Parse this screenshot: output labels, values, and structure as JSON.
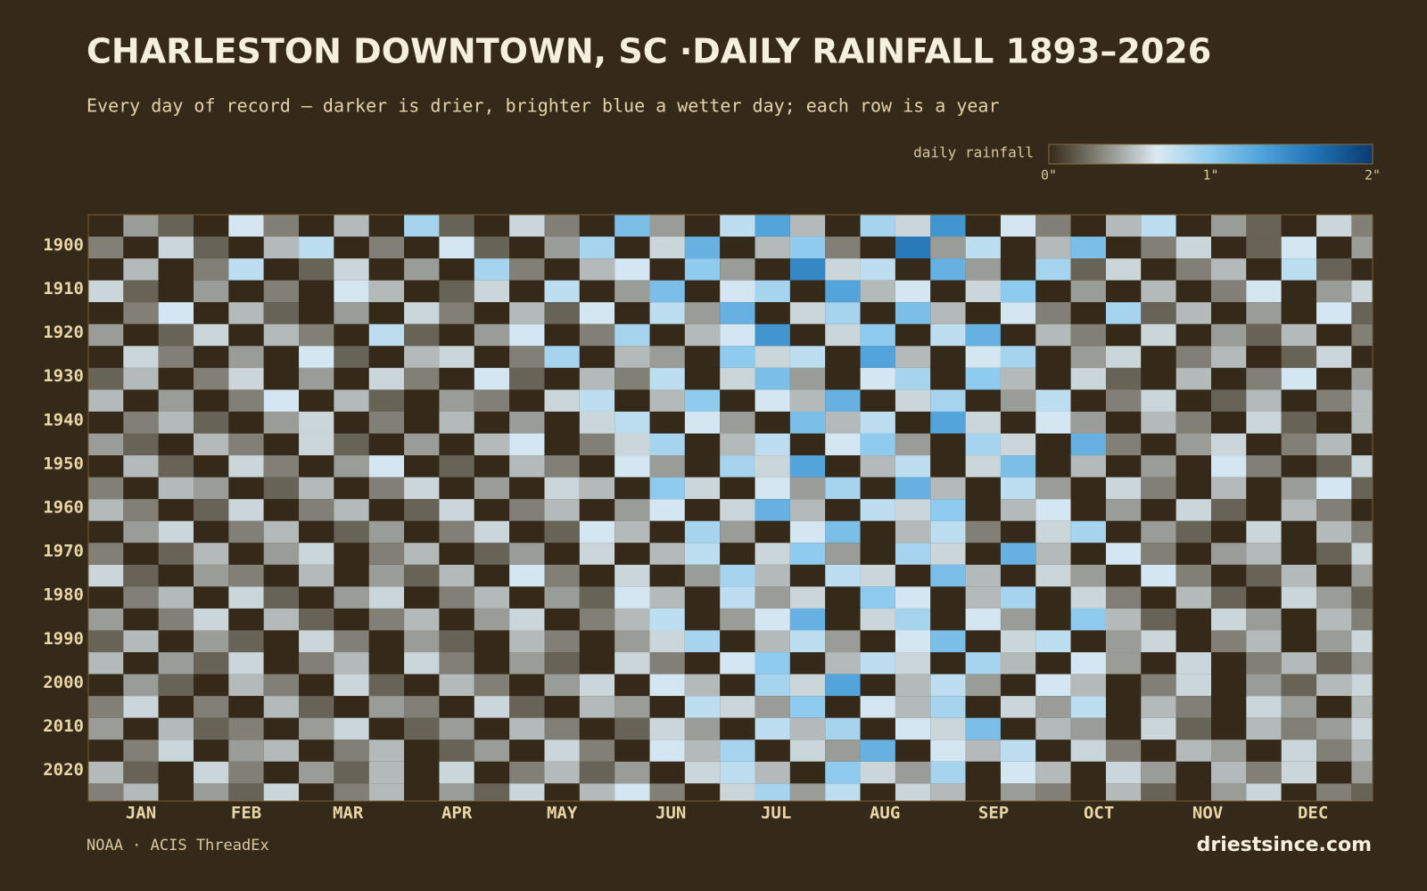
{
  "chart_data": {
    "type": "heatmap",
    "title": "CHARLESTON DOWNTOWN, SC ·DAILY RAINFALL 1893–2026",
    "subtitle": "Every day of record — darker is drier, brighter blue a wetter day; each row is a year",
    "source": "NOAA · ACIS ThreadEx",
    "brand": "driestsince.com",
    "colorbar": {
      "label": "daily rainfall",
      "lim": [
        0,
        2
      ],
      "ticks": [
        {
          "value": 0,
          "label": "0\""
        },
        {
          "value": 1,
          "label": "1\""
        },
        {
          "value": 2,
          "label": "2\""
        }
      ],
      "colors": [
        "#35291a",
        "#8a8a80",
        "#dbe9f2",
        "#8fcbee",
        "#4ba0d8",
        "#1f6fb0",
        "#0b3a70"
      ]
    },
    "xlim": [
      1,
      367
    ],
    "xticks": [
      {
        "value": 16,
        "label": "JAN"
      },
      {
        "value": 46,
        "label": "FEB"
      },
      {
        "value": 75,
        "label": "MAR"
      },
      {
        "value": 106,
        "label": "APR"
      },
      {
        "value": 136,
        "label": "MAY"
      },
      {
        "value": 167,
        "label": "JUN"
      },
      {
        "value": 197,
        "label": "JUL"
      },
      {
        "value": 228,
        "label": "AUG"
      },
      {
        "value": 259,
        "label": "SEP"
      },
      {
        "value": 289,
        "label": "OCT"
      },
      {
        "value": 320,
        "label": "NOV"
      },
      {
        "value": 350,
        "label": "DEC"
      }
    ],
    "ylim": [
      1893,
      2027
    ],
    "yticks": [
      1900,
      1910,
      1920,
      1930,
      1940,
      1950,
      1960,
      1970,
      1980,
      1990,
      2000,
      2010,
      2020
    ],
    "x": [
      1,
      11,
      21,
      31,
      41,
      51,
      61,
      71,
      81,
      91,
      101,
      111,
      121,
      131,
      141,
      151,
      161,
      171,
      181,
      191,
      201,
      211,
      221,
      231,
      241,
      251,
      261,
      271,
      281,
      291,
      301,
      311,
      321,
      331,
      341,
      351,
      361
    ],
    "y": [
      1893,
      1898,
      1903,
      1908,
      1913,
      1918,
      1923,
      1928,
      1933,
      1938,
      1943,
      1948,
      1953,
      1958,
      1963,
      1968,
      1973,
      1978,
      1983,
      1988,
      1993,
      1998,
      2003,
      2008,
      2013,
      2018,
      2023
    ],
    "values": [
      [
        0,
        0.4,
        0.2,
        0,
        0.7,
        0.3,
        0,
        0.5,
        0,
        0.9,
        0.2,
        0,
        0.6,
        0.3,
        0,
        1.1,
        0.4,
        0,
        0.8,
        1.3,
        0.5,
        0,
        0.9,
        0.6,
        1.4,
        0,
        0.7,
        0.3,
        0,
        0.5,
        0.8,
        0,
        0.4,
        0.2,
        0,
        0.6,
        0.3
      ],
      [
        0.3,
        0,
        0.6,
        0.2,
        0,
        0.5,
        0.8,
        0,
        0.3,
        0,
        0.7,
        0.2,
        0,
        0.4,
        0.9,
        0,
        0.6,
        1.2,
        0,
        0.5,
        1.0,
        0.3,
        0,
        1.6,
        0.4,
        0.8,
        0,
        0.5,
        1.1,
        0,
        0.3,
        0.6,
        0,
        0.2,
        0.7,
        0,
        0.4
      ],
      [
        0,
        0.5,
        0,
        0.3,
        0.8,
        0,
        0.2,
        0.6,
        0,
        0.4,
        0,
        0.9,
        0.3,
        0,
        0.5,
        0.7,
        0,
        1.0,
        0.4,
        0,
        1.5,
        0.6,
        0.8,
        0,
        1.2,
        0.4,
        0,
        0.9,
        0.2,
        0.6,
        0,
        0.3,
        0.5,
        0,
        0.8,
        0.2,
        0
      ],
      [
        0.6,
        0.2,
        0,
        0.4,
        0,
        0.3,
        0,
        0.7,
        0.5,
        0,
        0.2,
        0.6,
        0,
        0.8,
        0,
        0.4,
        1.1,
        0,
        0.7,
        0.9,
        0,
        1.3,
        0.5,
        0.7,
        0,
        0.6,
        1.0,
        0,
        0.4,
        0,
        0.5,
        0,
        0.3,
        0.7,
        0,
        0.4,
        0.6
      ],
      [
        0,
        0.3,
        0.7,
        0,
        0.5,
        0.2,
        0,
        0.4,
        0,
        0.6,
        0.3,
        0,
        0.5,
        0.2,
        0.7,
        0,
        0.8,
        0.4,
        1.2,
        0,
        0.6,
        0.9,
        0,
        1.1,
        0.5,
        0,
        0.7,
        0.3,
        0,
        0.9,
        0.2,
        0.5,
        0,
        0.4,
        0,
        0.7,
        0.2
      ],
      [
        0.4,
        0,
        0.2,
        0.6,
        0,
        0.5,
        0.3,
        0,
        0.8,
        0.2,
        0,
        0.4,
        0.7,
        0,
        0.3,
        0.9,
        0,
        0.5,
        0.7,
        1.4,
        0,
        0.6,
        1.0,
        0,
        0.8,
        1.2,
        0,
        0.5,
        0.3,
        0,
        0.6,
        0,
        0.4,
        0.2,
        0.5,
        0,
        0.3
      ],
      [
        0,
        0.6,
        0.3,
        0,
        0.4,
        0,
        0.7,
        0.2,
        0,
        0.5,
        0.6,
        0,
        0.3,
        0.9,
        0,
        0.5,
        0.4,
        0,
        1.0,
        0.6,
        0.8,
        0,
        1.3,
        0.5,
        0,
        0.7,
        0.9,
        0,
        0.4,
        0.6,
        0,
        0.3,
        0.5,
        0,
        0.2,
        0.6,
        0
      ],
      [
        0.2,
        0.5,
        0,
        0.3,
        0.6,
        0,
        0.4,
        0,
        0.6,
        0.3,
        0,
        0.7,
        0.2,
        0,
        0.5,
        0.3,
        0.8,
        0,
        0.6,
        1.1,
        0.4,
        0,
        0.7,
        0.9,
        0,
        1.0,
        0.5,
        0,
        0.6,
        0.2,
        0,
        0.5,
        0,
        0.3,
        0.7,
        0,
        0.4
      ],
      [
        0.5,
        0,
        0.4,
        0,
        0.3,
        0.7,
        0,
        0.5,
        0.2,
        0,
        0.4,
        0.3,
        0,
        0.6,
        0.8,
        0,
        0.5,
        1.0,
        0,
        0.7,
        0.5,
        1.2,
        0,
        0.6,
        0.9,
        0,
        0.4,
        0.8,
        0,
        0.3,
        0.6,
        0,
        0.2,
        0.5,
        0,
        0.3,
        0.5
      ],
      [
        0,
        0.3,
        0.5,
        0.2,
        0,
        0.4,
        0.6,
        0,
        0.3,
        0,
        0.5,
        0,
        0.4,
        0,
        0.6,
        0.8,
        0,
        0.7,
        0.4,
        0,
        1.1,
        0.5,
        0.8,
        0,
        1.3,
        0.6,
        0,
        0.7,
        0.4,
        0,
        0.5,
        0.3,
        0,
        0.6,
        0.2,
        0,
        0.5
      ],
      [
        0.4,
        0.2,
        0,
        0.5,
        0.3,
        0,
        0.6,
        0.2,
        0,
        0.4,
        0,
        0.5,
        0.7,
        0,
        0.3,
        0.6,
        0.9,
        0,
        0.5,
        0.8,
        0,
        0.7,
        1.0,
        0.4,
        0,
        0.9,
        0.6,
        0,
        1.2,
        0.3,
        0,
        0.4,
        0.6,
        0,
        0.3,
        0.5,
        0
      ],
      [
        0,
        0.5,
        0.2,
        0,
        0.6,
        0.3,
        0,
        0.4,
        0.7,
        0,
        0.2,
        0,
        0.5,
        0.3,
        0,
        0.7,
        0.4,
        0,
        0.9,
        0.6,
        1.3,
        0,
        0.5,
        0.8,
        0,
        0.6,
        1.1,
        0,
        0.5,
        0,
        0.4,
        0,
        0.7,
        0.3,
        0,
        0.2,
        0.6
      ],
      [
        0.3,
        0,
        0.5,
        0.4,
        0,
        0.2,
        0.5,
        0,
        0.3,
        0.6,
        0,
        0.4,
        0,
        0.6,
        0.5,
        0,
        1.0,
        0.6,
        0,
        0.7,
        0.4,
        0.9,
        0,
        1.2,
        0.5,
        0,
        0.8,
        0.4,
        0,
        0.6,
        0.3,
        0,
        0.5,
        0,
        0.4,
        0.7,
        0.2
      ],
      [
        0.5,
        0.3,
        0,
        0.2,
        0.6,
        0,
        0.3,
        0.5,
        0,
        0.2,
        0.6,
        0,
        0.3,
        0.5,
        0,
        0.4,
        0.7,
        0,
        0.6,
        1.2,
        0.5,
        0,
        0.8,
        0.6,
        1.0,
        0,
        0.5,
        0.7,
        0,
        0.4,
        0,
        0.6,
        0.2,
        0,
        0.5,
        0.3,
        0
      ],
      [
        0,
        0.4,
        0.6,
        0,
        0.3,
        0.5,
        0,
        0.2,
        0.4,
        0,
        0.3,
        0.6,
        0,
        0.2,
        0.7,
        0.5,
        0,
        0.9,
        0.4,
        0,
        0.7,
        1.1,
        0,
        0.5,
        0.8,
        0.3,
        0,
        0.6,
        0.9,
        0,
        0.4,
        0.2,
        0,
        0.6,
        0,
        0.5,
        0.3
      ],
      [
        0.3,
        0,
        0.2,
        0.5,
        0,
        0.4,
        0.6,
        0,
        0.3,
        0.5,
        0,
        0.2,
        0.4,
        0,
        0.6,
        0,
        0.5,
        0.8,
        0,
        0.6,
        1.0,
        0.4,
        0,
        0.9,
        0.6,
        0,
        1.2,
        0.5,
        0,
        0.7,
        0.3,
        0,
        0.4,
        0.5,
        0,
        0.2,
        0.6
      ],
      [
        0.6,
        0.2,
        0,
        0.4,
        0.3,
        0,
        0.5,
        0,
        0.4,
        0.2,
        0.5,
        0,
        0.7,
        0.3,
        0,
        0.6,
        0,
        0.4,
        0.9,
        0.5,
        0,
        0.8,
        0.6,
        0,
        1.1,
        0.5,
        0,
        0.6,
        0.4,
        0,
        0.7,
        0.3,
        0,
        0.2,
        0.5,
        0,
        0.4
      ],
      [
        0,
        0.3,
        0.5,
        0,
        0.6,
        0.2,
        0,
        0.4,
        0.6,
        0,
        0.3,
        0.5,
        0,
        0.4,
        0.2,
        0.7,
        0.5,
        0,
        0.8,
        0.4,
        0.6,
        0,
        1.0,
        0.7,
        0,
        0.5,
        0.9,
        0,
        0.6,
        0.3,
        0,
        0.5,
        0.2,
        0,
        0.6,
        0.4,
        0.2
      ],
      [
        0.4,
        0,
        0.3,
        0.6,
        0,
        0.5,
        0.2,
        0,
        0.3,
        0.5,
        0,
        0.4,
        0.6,
        0,
        0.3,
        0.5,
        0.8,
        0,
        0.4,
        0.7,
        1.2,
        0,
        0.6,
        0.9,
        0,
        0.7,
        0.4,
        0,
        1.0,
        0.5,
        0.2,
        0,
        0.6,
        0.4,
        0,
        0.5,
        0.3
      ],
      [
        0.2,
        0.5,
        0,
        0.4,
        0.2,
        0,
        0.6,
        0.3,
        0,
        0.4,
        0.2,
        0,
        0.5,
        0.3,
        0,
        0.4,
        0.6,
        0.9,
        0,
        0.5,
        0.8,
        0.4,
        0,
        0.7,
        1.1,
        0,
        0.6,
        0.8,
        0,
        0.4,
        0.6,
        0,
        0.3,
        0.5,
        0,
        0.4,
        0.6
      ],
      [
        0.5,
        0,
        0.4,
        0.2,
        0.6,
        0,
        0.3,
        0.5,
        0,
        0.6,
        0.3,
        0,
        0.4,
        0.2,
        0,
        0.6,
        0.3,
        0,
        0.7,
        1.0,
        0,
        0.5,
        0.8,
        0.6,
        0,
        0.9,
        0.5,
        0,
        0.7,
        0.4,
        0,
        0.6,
        0,
        0.3,
        0.5,
        0.2,
        0.4
      ],
      [
        0,
        0.4,
        0.2,
        0,
        0.5,
        0.3,
        0,
        0.6,
        0.2,
        0,
        0.5,
        0.3,
        0,
        0.4,
        0.6,
        0,
        0.7,
        0.5,
        0,
        0.9,
        0.6,
        1.3,
        0,
        0.5,
        0.8,
        0.4,
        0,
        0.7,
        0.5,
        0,
        0.3,
        0.6,
        0,
        0.4,
        0.2,
        0.5,
        0.6
      ],
      [
        0.3,
        0.6,
        0,
        0.3,
        0,
        0.5,
        0.2,
        0,
        0.4,
        0.3,
        0,
        0.6,
        0.2,
        0,
        0.5,
        0.4,
        0,
        0.8,
        0.6,
        0.4,
        1.0,
        0,
        0.7,
        0.5,
        0.9,
        0,
        0.6,
        0.4,
        0.8,
        0,
        0.5,
        0.3,
        0,
        0.6,
        0.4,
        0,
        0.5
      ],
      [
        0.4,
        0,
        0.5,
        0.2,
        0.3,
        0,
        0.4,
        0.6,
        0,
        0.2,
        0.4,
        0,
        0.5,
        0.3,
        0,
        0.2,
        0.6,
        0.4,
        0,
        0.8,
        0.5,
        0.9,
        0,
        0.7,
        0.6,
        1.1,
        0,
        0.5,
        0.4,
        0,
        0.6,
        0.2,
        0,
        0.5,
        0.3,
        0.4,
        0.6
      ],
      [
        0,
        0.3,
        0.6,
        0,
        0.4,
        0.5,
        0,
        0.3,
        0.5,
        0,
        0.2,
        0.4,
        0,
        0.6,
        0.3,
        0,
        0.7,
        0.5,
        0.9,
        0,
        0.6,
        0.4,
        1.2,
        0,
        0.7,
        0.5,
        0.8,
        0,
        0.6,
        0.3,
        0,
        0.5,
        0.4,
        0,
        0.6,
        0.3,
        0.5
      ],
      [
        0.5,
        0.2,
        0,
        0.6,
        0.3,
        0,
        0.4,
        0.2,
        0.5,
        0,
        0.6,
        0,
        0.3,
        0.5,
        0.2,
        0.4,
        0,
        0.6,
        0.8,
        0.5,
        0,
        1.0,
        0.6,
        0.4,
        0.9,
        0,
        0.7,
        0.5,
        0,
        0.6,
        0.4,
        0,
        0.5,
        0.3,
        0.6,
        0,
        0.4
      ],
      [
        0.3,
        0.5,
        0,
        0.4,
        0.2,
        0.6,
        0,
        0.3,
        0.5,
        0,
        0.4,
        0.2,
        0.6,
        0,
        0.5,
        0.7,
        0.3,
        0,
        0.6,
        0.9,
        0.4,
        0.8,
        0,
        0.6,
        0.5,
        0,
        0.4,
        0.3,
        0,
        0.5,
        0.2,
        0,
        0.4,
        0.6,
        0,
        0.3,
        0.2
      ]
    ]
  }
}
